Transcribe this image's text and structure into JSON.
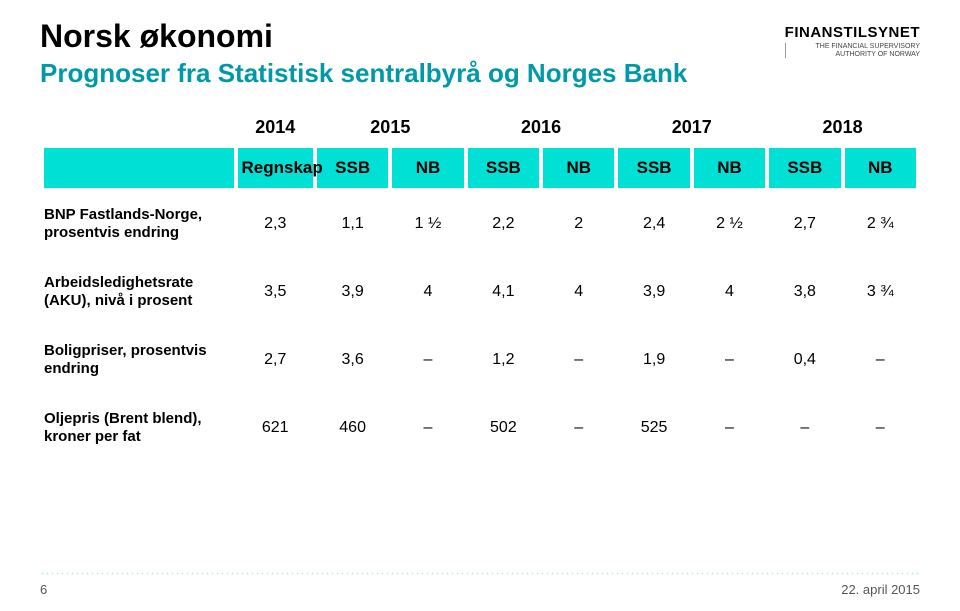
{
  "title": "Norsk økonomi",
  "subtitle": "Prognoser fra Statistisk sentralbyrå og Norges Bank",
  "subtitle_color": "#0099a8",
  "logo": {
    "main": "FINANSTILSYNET",
    "sub1": "THE FINANCIAL SUPERVISORY",
    "sub2": "AUTHORITY OF NORWAY"
  },
  "header_bg": "#00e0d4",
  "years": [
    "2014",
    "2015",
    "2016",
    "2017",
    "2018"
  ],
  "year1_sub": "Regnskap",
  "sources": [
    "SSB",
    "NB",
    "SSB",
    "NB",
    "SSB",
    "NB",
    "SSB",
    "NB"
  ],
  "rows": [
    {
      "label": "BNP Fastlands-Norge, prosentvis endring",
      "cells": [
        "2,3",
        "1,1",
        "1 ½",
        "2,2",
        "2",
        "2,4",
        "2 ½",
        "2,7",
        "2 ¾"
      ]
    },
    {
      "label": "Arbeidsledighetsrate (AKU), nivå i prosent",
      "cells": [
        "3,5",
        "3,9",
        "4",
        "4,1",
        "4",
        "3,9",
        "4",
        "3,8",
        "3 ¾"
      ]
    },
    {
      "label": "Boligpriser, prosentvis endring",
      "cells": [
        "2,7",
        "3,6",
        "–",
        "1,2",
        "–",
        "1,9",
        "–",
        "0,4",
        "–"
      ]
    },
    {
      "label": "Oljepris (Brent blend), kroner per fat",
      "cells": [
        "621",
        "460",
        "–",
        "502",
        "–",
        "525",
        "–",
        "–",
        "–"
      ]
    }
  ],
  "footer": {
    "page": "6",
    "date": "22. april 2015"
  }
}
